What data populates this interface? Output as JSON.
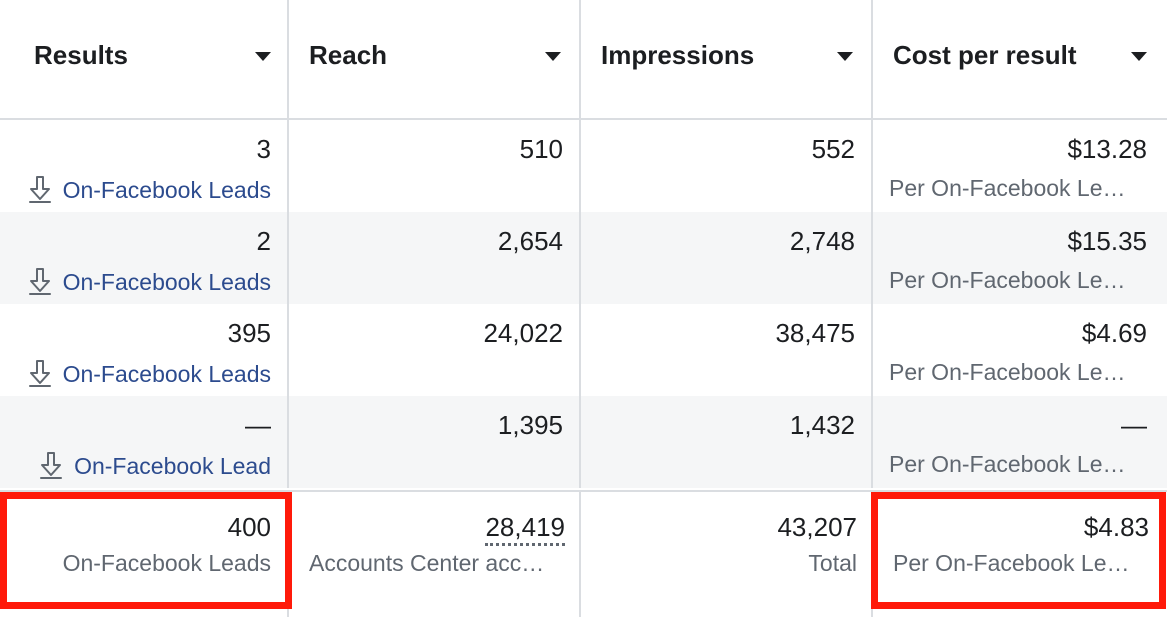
{
  "columns": [
    {
      "key": "results",
      "label": "Results"
    },
    {
      "key": "reach",
      "label": "Reach"
    },
    {
      "key": "impressions",
      "label": "Impressions"
    },
    {
      "key": "cost",
      "label": "Cost per result"
    }
  ],
  "rows": [
    {
      "results": "3",
      "results_sub": "On-Facebook Leads",
      "reach": "510",
      "impressions": "552",
      "cost": "$13.28",
      "cost_sub": "Per On-Facebook Le…"
    },
    {
      "results": "2",
      "results_sub": "On-Facebook Leads",
      "reach": "2,654",
      "impressions": "2,748",
      "cost": "$15.35",
      "cost_sub": "Per On-Facebook Le…"
    },
    {
      "results": "395",
      "results_sub": "On-Facebook Leads",
      "reach": "24,022",
      "impressions": "38,475",
      "cost": "$4.69",
      "cost_sub": "Per On-Facebook Le…"
    },
    {
      "results": "—",
      "results_sub": "On-Facebook Lead",
      "reach": "1,395",
      "impressions": "1,432",
      "cost": "—",
      "cost_sub": "Per On-Facebook Le…"
    }
  ],
  "totals": {
    "results": "400",
    "results_sub": "On-Facebook Leads",
    "reach": "28,419",
    "reach_sub": "Accounts Center acc…",
    "impressions": "43,207",
    "impressions_sub": "Total",
    "cost": "$4.83",
    "cost_sub": "Per On-Facebook Le…"
  },
  "icons": {
    "sort": "caret-down-icon",
    "lead": "download-icon"
  },
  "colors": {
    "highlight": "#ff1a0a",
    "link": "#2c4b8e"
  }
}
